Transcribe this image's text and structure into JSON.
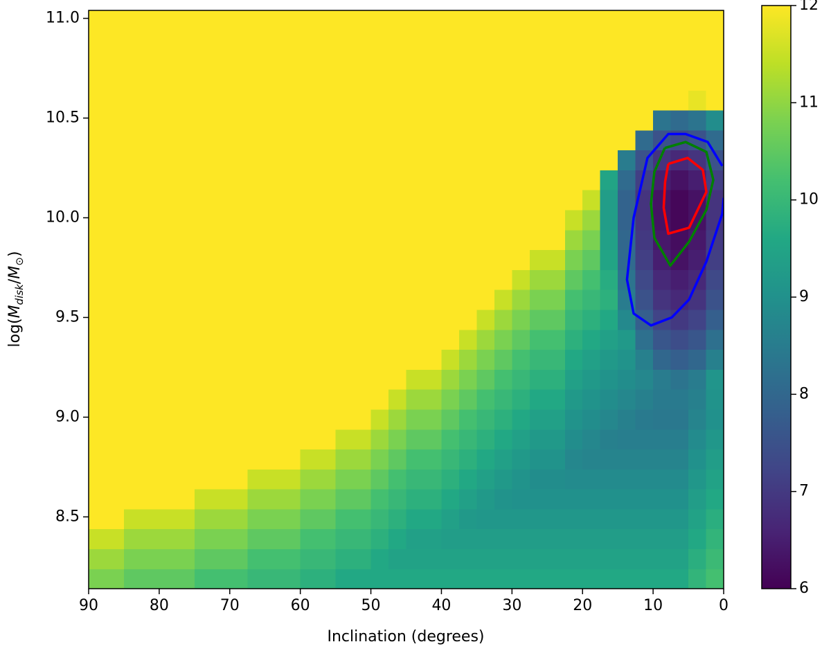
{
  "chart_data": {
    "type": "heatmap",
    "x_label": "Inclination (degrees)",
    "y_label": [
      "log(",
      "M",
      "disk",
      "/",
      "M",
      "⊙",
      ")"
    ],
    "colormap": "viridis",
    "xlim": [
      90,
      0
    ],
    "ylim": [
      8.14,
      11.04
    ],
    "xticks": [
      90,
      80,
      70,
      60,
      50,
      40,
      30,
      20,
      10,
      0
    ],
    "yticks": [
      {
        "value": 8.5,
        "label": "8.5"
      },
      {
        "value": 9,
        "label": "9.0"
      },
      {
        "value": 9.5,
        "label": "9.5"
      },
      {
        "value": 10,
        "label": "10.0"
      },
      {
        "value": 10.5,
        "label": "10.5"
      },
      {
        "value": 11,
        "label": "11.0"
      }
    ],
    "clim": [
      6,
      12
    ],
    "cticks": [
      6,
      7,
      8,
      9,
      10,
      11,
      12
    ],
    "x": [
      88.75,
      86.25,
      83.75,
      81.25,
      78.75,
      76.25,
      73.75,
      71.25,
      68.75,
      66.25,
      63.75,
      61.25,
      58.75,
      56.25,
      53.75,
      51.25,
      48.75,
      46.25,
      43.75,
      41.25,
      38.75,
      36.25,
      33.75,
      31.25,
      28.75,
      26.25,
      23.75,
      21.25,
      18.75,
      16.25,
      13.75,
      11.25,
      8.75,
      6.25,
      3.75,
      1.25
    ],
    "y": [
      8.19,
      8.29,
      8.39,
      8.49,
      8.59,
      8.69,
      8.79,
      8.89,
      8.99,
      9.09,
      9.19,
      9.29,
      9.39,
      9.49,
      9.59,
      9.69,
      9.79,
      9.89,
      9.99,
      10.09,
      10.19,
      10.29,
      10.39,
      10.49,
      10.59,
      10.69,
      10.79,
      10.89,
      10.99
    ],
    "z": [
      [
        10.8,
        11.1,
        11.5,
        12,
        12,
        12,
        12,
        12,
        12,
        12,
        12,
        12,
        12,
        12,
        12,
        12,
        12,
        12,
        12,
        12,
        12,
        12,
        12,
        12,
        12,
        12,
        12,
        12,
        12
      ],
      [
        10.8,
        11.1,
        11.5,
        12,
        12,
        12,
        12,
        12,
        12,
        12,
        12,
        12,
        12,
        12,
        12,
        12,
        12,
        12,
        12,
        12,
        12,
        12,
        12,
        12,
        12,
        12,
        12,
        12,
        12
      ],
      [
        10.5,
        10.8,
        11.1,
        11.5,
        12,
        12,
        12,
        12,
        12,
        12,
        12,
        12,
        12,
        12,
        12,
        12,
        12,
        12,
        12,
        12,
        12,
        12,
        12,
        12,
        12,
        12,
        12,
        12,
        12
      ],
      [
        10.5,
        10.8,
        11.1,
        11.5,
        12,
        12,
        12,
        12,
        12,
        12,
        12,
        12,
        12,
        12,
        12,
        12,
        12,
        12,
        12,
        12,
        12,
        12,
        12,
        12,
        12,
        12,
        12,
        12,
        12
      ],
      [
        10.5,
        10.8,
        11.1,
        11.5,
        12,
        12,
        12,
        12,
        12,
        12,
        12,
        12,
        12,
        12,
        12,
        12,
        12,
        12,
        12,
        12,
        12,
        12,
        12,
        12,
        12,
        12,
        12,
        12,
        12
      ],
      [
        10.5,
        10.8,
        11.1,
        11.5,
        12,
        12,
        12,
        12,
        12,
        12,
        12,
        12,
        12,
        12,
        12,
        12,
        12,
        12,
        12,
        12,
        12,
        12,
        12,
        12,
        12,
        12,
        12,
        12,
        12
      ],
      [
        10.2,
        10.5,
        10.8,
        11.1,
        11.5,
        12,
        12,
        12,
        12,
        12,
        12,
        12,
        12,
        12,
        12,
        12,
        12,
        12,
        12,
        12,
        12,
        12,
        12,
        12,
        12,
        12,
        12,
        12,
        12
      ],
      [
        10.2,
        10.5,
        10.8,
        11.1,
        11.5,
        12,
        12,
        12,
        12,
        12,
        12,
        12,
        12,
        12,
        12,
        12,
        12,
        12,
        12,
        12,
        12,
        12,
        12,
        12,
        12,
        12,
        12,
        12,
        12
      ],
      [
        10.2,
        10.5,
        10.8,
        11.1,
        11.5,
        12,
        12,
        12,
        12,
        12,
        12,
        12,
        12,
        12,
        12,
        12,
        12,
        12,
        12,
        12,
        12,
        12,
        12,
        12,
        12,
        12,
        12,
        12,
        12
      ],
      [
        10.0,
        10.2,
        10.5,
        10.8,
        11.1,
        11.5,
        12,
        12,
        12,
        12,
        12,
        12,
        12,
        12,
        12,
        12,
        12,
        12,
        12,
        12,
        12,
        12,
        12,
        12,
        12,
        12,
        12,
        12,
        12
      ],
      [
        10.0,
        10.2,
        10.5,
        10.8,
        11.1,
        11.5,
        12,
        12,
        12,
        12,
        12,
        12,
        12,
        12,
        12,
        12,
        12,
        12,
        12,
        12,
        12,
        12,
        12,
        12,
        12,
        12,
        12,
        12,
        12
      ],
      [
        10.0,
        10.2,
        10.5,
        10.8,
        11.1,
        11.5,
        12,
        12,
        12,
        12,
        12,
        12,
        12,
        12,
        12,
        12,
        12,
        12,
        12,
        12,
        12,
        12,
        12,
        12,
        12,
        12,
        12,
        12,
        12
      ],
      [
        9.8,
        10.0,
        10.2,
        10.5,
        10.8,
        11.1,
        11.5,
        12,
        12,
        12,
        12,
        12,
        12,
        12,
        12,
        12,
        12,
        12,
        12,
        12,
        12,
        12,
        12,
        12,
        12,
        12,
        12,
        12,
        12
      ],
      [
        9.8,
        10.0,
        10.2,
        10.5,
        10.8,
        11.1,
        11.5,
        12,
        12,
        12,
        12,
        12,
        12,
        12,
        12,
        12,
        12,
        12,
        12,
        12,
        12,
        12,
        12,
        12,
        12,
        12,
        12,
        12,
        12
      ],
      [
        9.6,
        9.8,
        10.0,
        10.2,
        10.5,
        10.8,
        11.1,
        11.5,
        12,
        12,
        12,
        12,
        12,
        12,
        12,
        12,
        12,
        12,
        12,
        12,
        12,
        12,
        12,
        12,
        12,
        12,
        12,
        12,
        12
      ],
      [
        9.6,
        9.8,
        10.0,
        10.2,
        10.5,
        10.8,
        11.1,
        11.5,
        12,
        12,
        12,
        12,
        12,
        12,
        12,
        12,
        12,
        12,
        12,
        12,
        12,
        12,
        12,
        12,
        12,
        12,
        12,
        12,
        12
      ],
      [
        9.6,
        9.6,
        9.8,
        10.0,
        10.2,
        10.5,
        10.8,
        11.1,
        11.5,
        12,
        12,
        12,
        12,
        12,
        12,
        12,
        12,
        12,
        12,
        12,
        12,
        12,
        12,
        12,
        12,
        12,
        12,
        12,
        12
      ],
      [
        9.6,
        9.45,
        9.6,
        9.8,
        10.0,
        10.2,
        10.5,
        10.8,
        11.1,
        11.5,
        12,
        12,
        12,
        12,
        12,
        12,
        12,
        12,
        12,
        12,
        12,
        12,
        12,
        12,
        12,
        12,
        12,
        12,
        12
      ],
      [
        9.6,
        9.45,
        9.4,
        9.6,
        9.8,
        10.0,
        10.2,
        10.5,
        10.8,
        11.1,
        11.5,
        12,
        12,
        12,
        12,
        12,
        12,
        12,
        12,
        12,
        12,
        12,
        12,
        12,
        12,
        12,
        12,
        12,
        12
      ],
      [
        9.6,
        9.45,
        9.4,
        9.6,
        9.8,
        10.0,
        10.2,
        10.5,
        10.8,
        11.1,
        11.5,
        12,
        12,
        12,
        12,
        12,
        12,
        12,
        12,
        12,
        12,
        12,
        12,
        12,
        12,
        12,
        12,
        12,
        12
      ],
      [
        9.6,
        9.45,
        9.3,
        9.4,
        9.6,
        9.8,
        10.0,
        10.2,
        10.5,
        10.8,
        11.1,
        11.5,
        12,
        12,
        12,
        12,
        12,
        12,
        12,
        12,
        12,
        12,
        12,
        12,
        12,
        12,
        12,
        12,
        12
      ],
      [
        9.6,
        9.45,
        9.3,
        9.2,
        9.4,
        9.6,
        9.8,
        10.0,
        10.2,
        10.5,
        10.8,
        11.1,
        11.5,
        12,
        12,
        12,
        12,
        12,
        12,
        12,
        12,
        12,
        12,
        12,
        12,
        12,
        12,
        12,
        12
      ],
      [
        9.6,
        9.45,
        9.3,
        9.15,
        9.2,
        9.4,
        9.6,
        9.8,
        10.0,
        10.2,
        10.5,
        10.8,
        11.1,
        11.5,
        12,
        12,
        12,
        12,
        12,
        12,
        12,
        12,
        12,
        12,
        12,
        12,
        12,
        12,
        12
      ],
      [
        9.6,
        9.45,
        9.3,
        9.15,
        9.05,
        9.2,
        9.4,
        9.6,
        9.8,
        10.0,
        10.2,
        10.5,
        10.8,
        11.1,
        11.5,
        12,
        12,
        12,
        12,
        12,
        12,
        12,
        12,
        12,
        12,
        12,
        12,
        12,
        12
      ],
      [
        9.6,
        9.45,
        9.3,
        9.15,
        9.0,
        9.05,
        9.2,
        9.4,
        9.6,
        9.8,
        10.0,
        10.2,
        10.5,
        10.8,
        11.1,
        11.5,
        12,
        12,
        12,
        12,
        12,
        12,
        12,
        12,
        12,
        12,
        12,
        12,
        12
      ],
      [
        9.6,
        9.45,
        9.3,
        9.15,
        9.0,
        8.9,
        9.05,
        9.2,
        9.4,
        9.6,
        9.8,
        10.0,
        10.2,
        10.5,
        10.8,
        11.1,
        11.5,
        12,
        12,
        12,
        12,
        12,
        12,
        12,
        12,
        12,
        12,
        12,
        12
      ],
      [
        9.6,
        9.45,
        9.3,
        9.15,
        9.0,
        8.9,
        9.05,
        9.2,
        9.4,
        9.6,
        9.8,
        10.0,
        10.2,
        10.5,
        10.8,
        11.1,
        11.5,
        12,
        12,
        12,
        12,
        12,
        12,
        12,
        12,
        12,
        12,
        12,
        12
      ],
      [
        9.6,
        9.45,
        9.3,
        9.15,
        9.0,
        8.85,
        8.75,
        8.9,
        9.05,
        9.2,
        9.4,
        9.6,
        9.8,
        10.0,
        10.2,
        10.5,
        10.8,
        11.1,
        11.5,
        12,
        12,
        12,
        12,
        12,
        12,
        12,
        12,
        12,
        12
      ],
      [
        9.6,
        9.45,
        9.3,
        9.15,
        9.0,
        8.85,
        8.7,
        8.75,
        8.9,
        9.05,
        9.2,
        9.4,
        9.6,
        9.8,
        10.0,
        10.2,
        10.5,
        10.8,
        11.1,
        11.5,
        12,
        12,
        12,
        12,
        12,
        12,
        12,
        12,
        12
      ],
      [
        9.6,
        9.45,
        9.3,
        9.15,
        9.0,
        8.85,
        8.7,
        8.6,
        8.75,
        8.9,
        9.05,
        9.2,
        9.4,
        9.6,
        9.8,
        9.7,
        9.5,
        9.4,
        9.3,
        9.3,
        9.5,
        12,
        12,
        12,
        12,
        12,
        12,
        12,
        12
      ],
      [
        9.6,
        9.45,
        9.3,
        9.15,
        9.0,
        8.85,
        8.7,
        8.55,
        8.6,
        8.75,
        8.9,
        9.05,
        9.2,
        8.8,
        8.5,
        8.3,
        8.1,
        8.0,
        7.9,
        7.9,
        8.1,
        8.5,
        12,
        12,
        12,
        12,
        12,
        12,
        12
      ],
      [
        9.6,
        9.45,
        9.3,
        9.15,
        9.0,
        8.85,
        8.7,
        8.55,
        8.45,
        8.6,
        8.75,
        8.6,
        8.2,
        7.8,
        7.5,
        7.3,
        7.1,
        7.0,
        6.9,
        6.9,
        7.1,
        7.5,
        8.1,
        12,
        12,
        12,
        12,
        12,
        12
      ],
      [
        9.6,
        9.45,
        9.3,
        9.15,
        9.0,
        8.85,
        8.7,
        8.55,
        8.4,
        8.45,
        8.5,
        8.0,
        7.6,
        7.2,
        6.9,
        6.7,
        6.5,
        6.4,
        6.3,
        6.3,
        6.5,
        6.9,
        7.5,
        8.3,
        12,
        12,
        12,
        12,
        12
      ],
      [
        9.6,
        9.45,
        9.3,
        9.15,
        9.0,
        8.85,
        8.7,
        8.55,
        8.4,
        8.45,
        8.3,
        7.8,
        7.4,
        7.0,
        6.7,
        6.5,
        6.3,
        6.2,
        6.1,
        6.1,
        6.3,
        6.7,
        7.3,
        8.1,
        12,
        12,
        12,
        12,
        12
      ],
      [
        9.9,
        9.75,
        9.6,
        9.45,
        9.3,
        9.15,
        9.0,
        8.85,
        8.7,
        8.6,
        8.5,
        8.0,
        7.6,
        7.2,
        6.9,
        6.7,
        6.5,
        6.4,
        6.3,
        6.3,
        6.5,
        6.9,
        7.5,
        8.3,
        11.8,
        12,
        12,
        12,
        12
      ],
      [
        10.2,
        10.05,
        9.9,
        9.75,
        9.6,
        9.45,
        9.3,
        9.15,
        9.0,
        9.05,
        9.1,
        8.6,
        8.2,
        7.8,
        7.5,
        7.3,
        7.1,
        7.0,
        6.9,
        6.9,
        7.1,
        7.5,
        8.1,
        8.9,
        12,
        12,
        12,
        12,
        12
      ]
    ],
    "contours": [
      {
        "color": "#0000ff",
        "x": [
          0.2,
          2.26,
          5.4,
          7.85,
          10.8,
          12.76,
          13.7,
          12.76,
          10.3,
          7.36,
          4.9,
          2.45,
          0.2,
          0
        ],
        "y": [
          10.26,
          10.38,
          10.42,
          10.42,
          10.3,
          10.0,
          9.69,
          9.52,
          9.46,
          9.5,
          9.59,
          9.78,
          10.02,
          10.1
        ]
      },
      {
        "color": "#008000",
        "x": [
          8.34,
          5.4,
          2.45,
          1.47,
          2.45,
          4.9,
          7.56,
          9.82,
          10.3,
          9.82,
          8.34
        ],
        "y": [
          10.35,
          10.38,
          10.33,
          10.19,
          10.04,
          9.88,
          9.76,
          9.9,
          10.07,
          10.23,
          10.35
        ]
      },
      {
        "color": "#ff0000",
        "x": [
          7.85,
          5.1,
          2.95,
          2.45,
          4.9,
          7.85,
          8.5,
          8.3,
          7.85
        ],
        "y": [
          10.27,
          10.3,
          10.24,
          10.13,
          9.95,
          9.92,
          10.05,
          10.18,
          10.27
        ]
      }
    ]
  }
}
